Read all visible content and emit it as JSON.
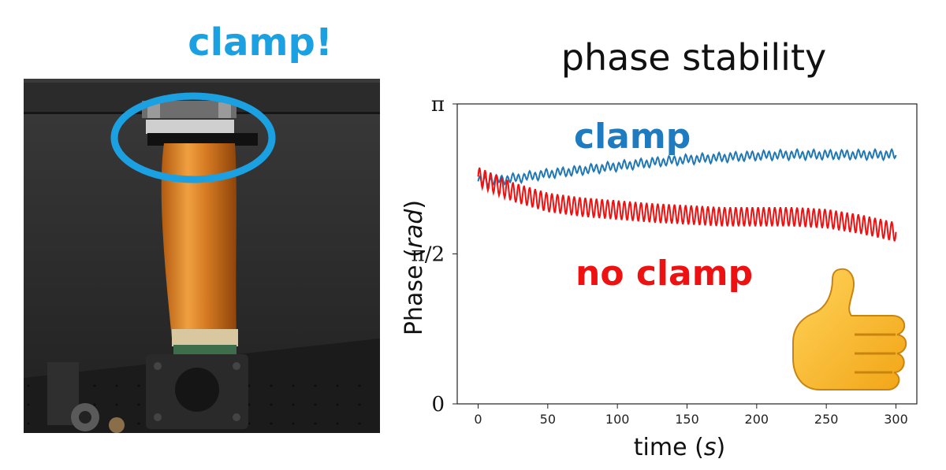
{
  "left_panel": {
    "title": "clamp!",
    "highlight_color": "#1ba1e2"
  },
  "chart_data": {
    "type": "line",
    "title": "phase stability",
    "xlabel_main": "time (",
    "xlabel_italic": "s",
    "xlabel_close": ")",
    "ylabel_main": "Phase (",
    "ylabel_italic": "rad",
    "ylabel_close": ")",
    "xlim": [
      -15,
      315
    ],
    "ylim": [
      0,
      3.14159
    ],
    "x_ticks": [
      0,
      50,
      100,
      150,
      200,
      250,
      300
    ],
    "x_tick_labels": [
      "0",
      "50",
      "100",
      "150",
      "200",
      "250",
      "300"
    ],
    "y_tick_labels": [
      "0",
      "π/2",
      "π"
    ],
    "y_tick_values": [
      0,
      1.5708,
      3.14159
    ],
    "grid": false,
    "series": [
      {
        "name": "clamp",
        "color": "#1f77b4",
        "label_color": "#1f7bbf",
        "x": [
          0,
          25,
          50,
          75,
          100,
          125,
          150,
          175,
          200,
          225,
          250,
          275,
          300
        ],
        "y": [
          2.33,
          2.36,
          2.41,
          2.45,
          2.49,
          2.53,
          2.56,
          2.58,
          2.6,
          2.61,
          2.61,
          2.61,
          2.61
        ],
        "oscillation_amplitude": 0.04,
        "oscillation_period": 4
      },
      {
        "name": "no clamp",
        "color": "#ee1111",
        "label_color": "#ee1111",
        "x": [
          0,
          25,
          50,
          75,
          100,
          125,
          150,
          175,
          200,
          225,
          250,
          275,
          300
        ],
        "y": [
          2.38,
          2.22,
          2.11,
          2.06,
          2.03,
          2.0,
          1.98,
          1.96,
          1.96,
          1.96,
          1.94,
          1.88,
          1.8
        ],
        "oscillation_amplitude": 0.1,
        "oscillation_period": 4
      }
    ]
  },
  "thumb_emoji": "thumbs-up-icon"
}
